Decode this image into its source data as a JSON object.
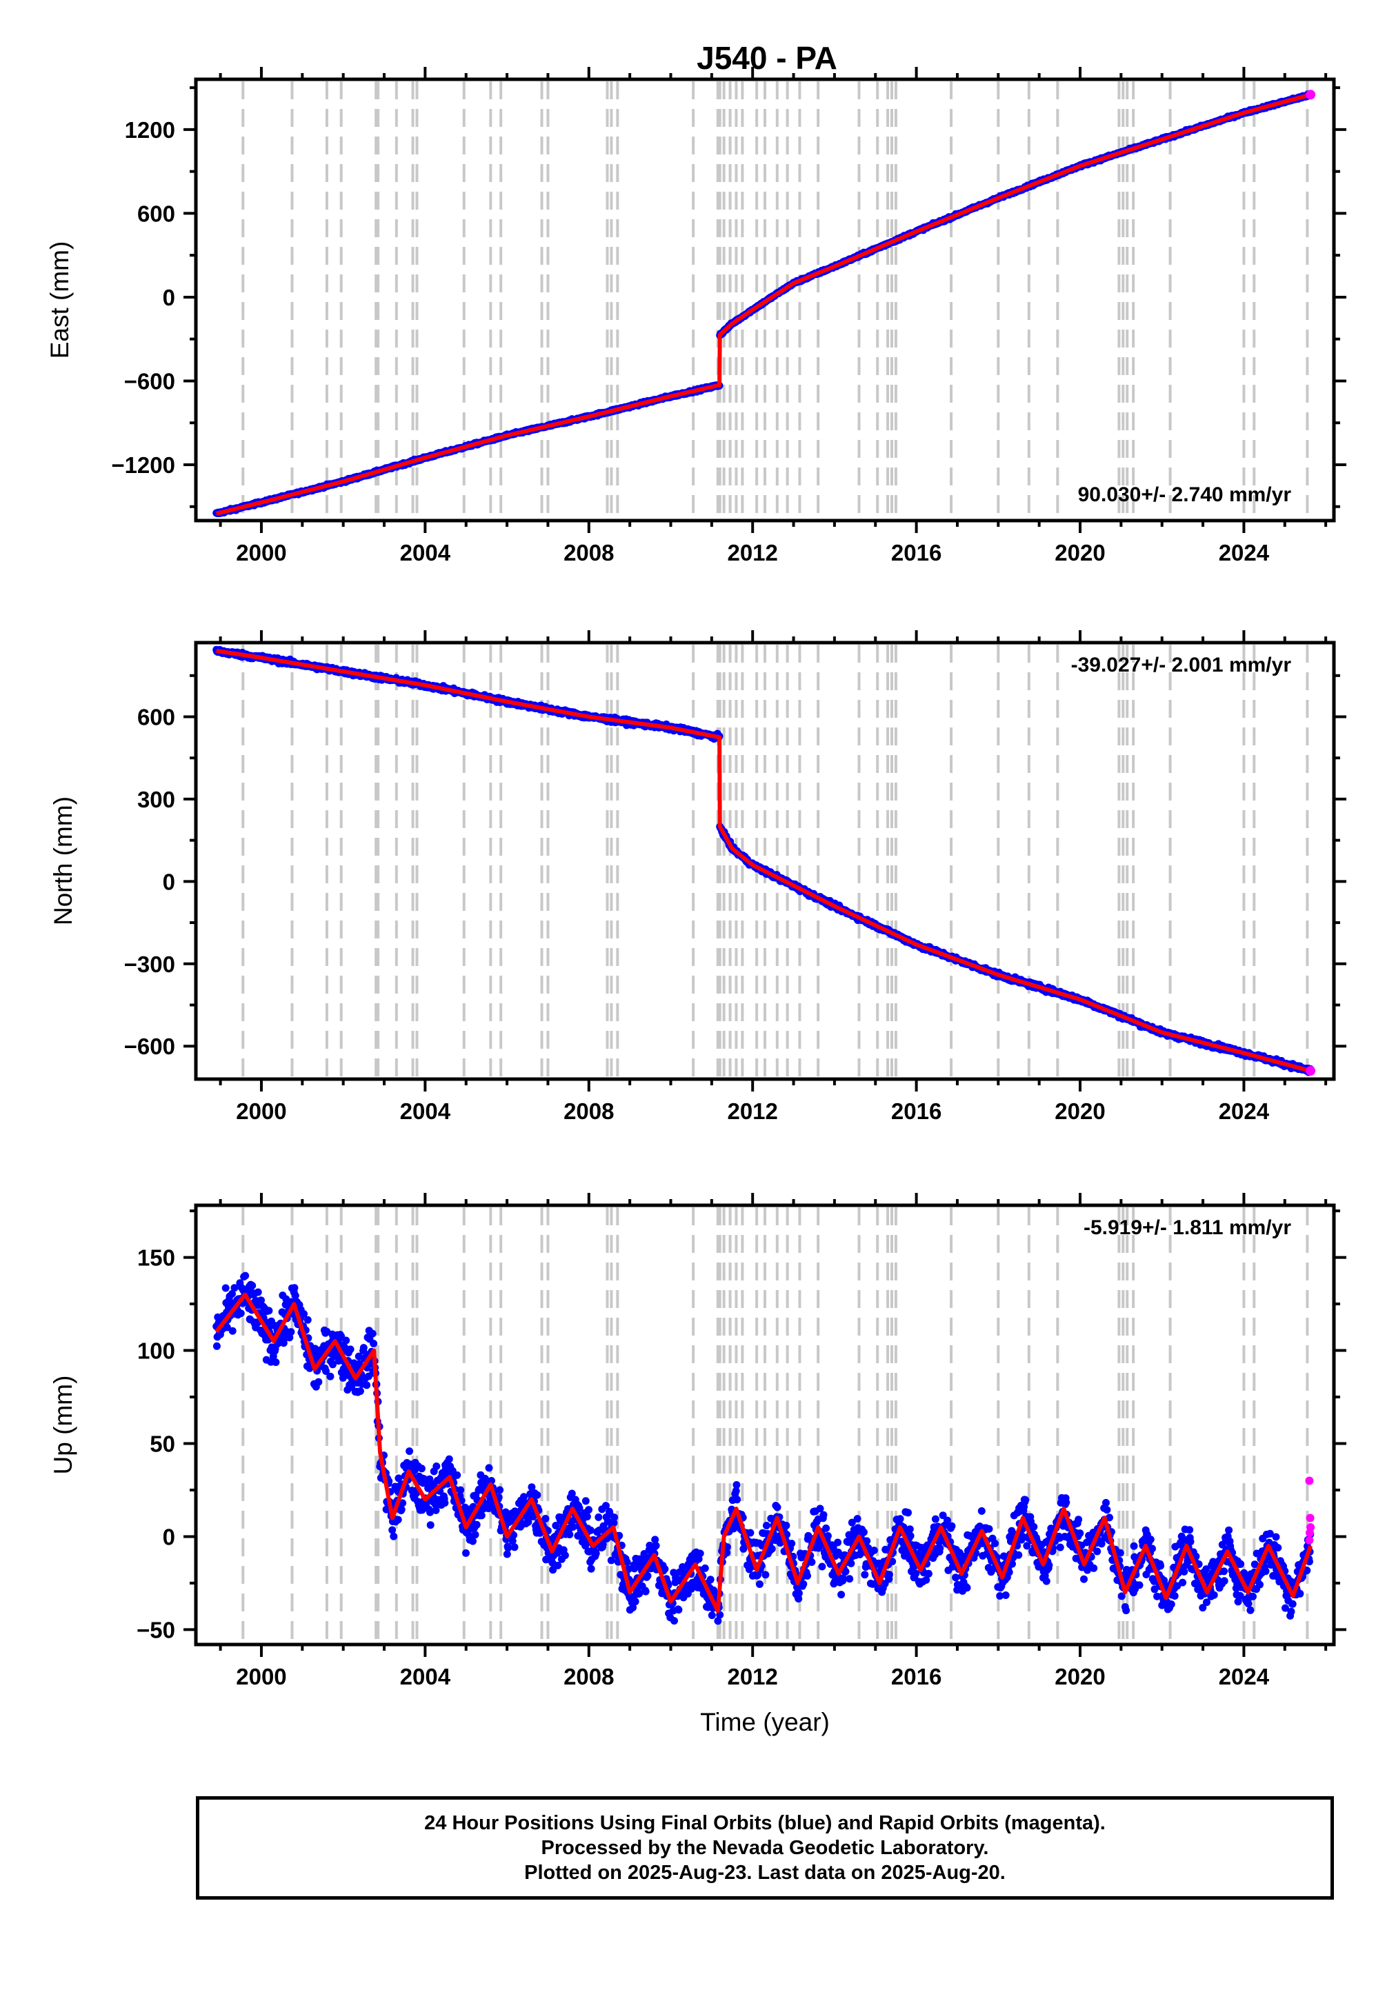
{
  "title": "J540 - PA",
  "footer": {
    "line1": "24 Hour Positions Using Final Orbits (blue) and Rapid Orbits (magenta).",
    "line2": "Processed by the Nevada Geodetic Laboratory.",
    "line3": "Plotted on 2025-Aug-23. Last data on 2025-Aug-20."
  },
  "colors": {
    "final_orbits": "#0000ff",
    "rapid_orbits": "#ff00ff",
    "model": "#ff0000",
    "step_lines": "#c8c8c8",
    "frame": "#000000"
  },
  "step_line_years": [
    1999.55,
    2000.75,
    2001.6,
    2001.95,
    2002.8,
    2002.85,
    2003.3,
    2003.7,
    2003.8,
    2004.95,
    2005.6,
    2005.85,
    2006.85,
    2007.0,
    2008.45,
    2008.55,
    2008.7,
    2010.55,
    2011.15,
    2011.2,
    2011.3,
    2011.45,
    2011.6,
    2011.75,
    2012.1,
    2012.3,
    2012.6,
    2012.85,
    2013.15,
    2013.6,
    2014.6,
    2015.05,
    2015.3,
    2015.4,
    2015.5,
    2016.85,
    2018.0,
    2018.75,
    2019.45,
    2020.95,
    2021.05,
    2021.15,
    2021.3,
    2022.2,
    2024.0,
    2024.25,
    2025.55
  ],
  "chart_data": [
    {
      "type": "scatter",
      "component": "east",
      "ylabel": "East (mm)",
      "xlim": [
        1998.4,
        2026.2
      ],
      "ylim": [
        -1600,
        1560
      ],
      "yticks": [
        -1200,
        -600,
        0,
        600,
        1200
      ],
      "xticks": [
        2000,
        2004,
        2008,
        2012,
        2016,
        2020,
        2024
      ],
      "rate_label": "90.030+/- 2.740 mm/yr",
      "rate_position": "bottom-right",
      "grid": false,
      "series": [
        {
          "values_by_year": [
            [
              1998.9,
              -1550
            ],
            [
              2000,
              -1470
            ],
            [
              2002,
              -1320
            ],
            [
              2004,
              -1150
            ],
            [
              2006,
              -990
            ],
            [
              2008,
              -855
            ],
            [
              2010,
              -710
            ],
            [
              2011.19,
              -630
            ],
            [
              2011.2,
              -270
            ],
            [
              2011.5,
              -190
            ],
            [
              2012.0,
              -90
            ],
            [
              2013.0,
              100
            ],
            [
              2014,
              220
            ],
            [
              2016,
              470
            ],
            [
              2018,
              710
            ],
            [
              2020,
              940
            ],
            [
              2022,
              1130
            ],
            [
              2024,
              1320
            ],
            [
              2025.63,
              1450
            ]
          ]
        }
      ]
    },
    {
      "type": "scatter",
      "component": "north",
      "ylabel": "North (mm)",
      "xlim": [
        1998.4,
        2026.2
      ],
      "ylim": [
        -720,
        870
      ],
      "yticks": [
        -600,
        -300,
        0,
        300,
        600
      ],
      "xticks": [
        2000,
        2004,
        2008,
        2012,
        2016,
        2020,
        2024
      ],
      "rate_label": "-39.027+/- 2.001 mm/yr",
      "rate_position": "top-right",
      "grid": false,
      "series": [
        {
          "values_by_year": [
            [
              1998.9,
              840
            ],
            [
              2000,
              815
            ],
            [
              2002,
              765
            ],
            [
              2004,
              715
            ],
            [
              2006,
              655
            ],
            [
              2008,
              600
            ],
            [
              2010,
              560
            ],
            [
              2011.19,
              525
            ],
            [
              2011.2,
              200
            ],
            [
              2011.5,
              120
            ],
            [
              2012,
              60
            ],
            [
              2013,
              -15
            ],
            [
              2014,
              -90
            ],
            [
              2016,
              -230
            ],
            [
              2018,
              -340
            ],
            [
              2020,
              -430
            ],
            [
              2022,
              -550
            ],
            [
              2024,
              -625
            ],
            [
              2025.63,
              -690
            ]
          ]
        }
      ]
    },
    {
      "type": "scatter",
      "component": "up",
      "ylabel": "Up (mm)",
      "xlabel": "Time (year)",
      "xlim": [
        1998.4,
        2026.2
      ],
      "ylim": [
        -58,
        178
      ],
      "yticks": [
        -50,
        0,
        50,
        100,
        150
      ],
      "xticks": [
        2000,
        2004,
        2008,
        2012,
        2016,
        2020,
        2024
      ],
      "rate_label": "-5.919+/- 1.811 mm/yr",
      "rate_position": "top-right",
      "grid": false,
      "series": [
        {
          "values_by_year": [
            [
              1998.9,
              110
            ],
            [
              1999.6,
              130
            ],
            [
              2000.3,
              105
            ],
            [
              2000.8,
              125
            ],
            [
              2001.3,
              90
            ],
            [
              2001.8,
              105
            ],
            [
              2002.3,
              85
            ],
            [
              2002.75,
              100
            ],
            [
              2002.9,
              45
            ],
            [
              2003.2,
              10
            ],
            [
              2003.6,
              35
            ],
            [
              2004,
              20
            ],
            [
              2004.6,
              32
            ],
            [
              2005,
              5
            ],
            [
              2005.6,
              28
            ],
            [
              2006,
              0
            ],
            [
              2006.6,
              20
            ],
            [
              2007.1,
              -8
            ],
            [
              2007.6,
              15
            ],
            [
              2008.1,
              -5
            ],
            [
              2008.6,
              5
            ],
            [
              2009,
              -30
            ],
            [
              2009.6,
              -10
            ],
            [
              2010,
              -35
            ],
            [
              2010.6,
              -15
            ],
            [
              2011.15,
              -40
            ],
            [
              2011.3,
              0
            ],
            [
              2011.6,
              15
            ],
            [
              2012.1,
              -18
            ],
            [
              2012.6,
              10
            ],
            [
              2013.1,
              -25
            ],
            [
              2013.6,
              5
            ],
            [
              2014.1,
              -20
            ],
            [
              2014.6,
              0
            ],
            [
              2015.1,
              -25
            ],
            [
              2015.6,
              5
            ],
            [
              2016.1,
              -18
            ],
            [
              2016.6,
              5
            ],
            [
              2017.1,
              -20
            ],
            [
              2017.6,
              3
            ],
            [
              2018.1,
              -22
            ],
            [
              2018.6,
              10
            ],
            [
              2019.1,
              -15
            ],
            [
              2019.6,
              15
            ],
            [
              2020.1,
              -15
            ],
            [
              2020.6,
              10
            ],
            [
              2021.1,
              -30
            ],
            [
              2021.6,
              -5
            ],
            [
              2022.1,
              -33
            ],
            [
              2022.6,
              -5
            ],
            [
              2023.1,
              -30
            ],
            [
              2023.6,
              -8
            ],
            [
              2024.1,
              -30
            ],
            [
              2024.6,
              -5
            ],
            [
              2025.2,
              -32
            ],
            [
              2025.63,
              -5
            ]
          ]
        }
      ],
      "rapid_points": [
        [
          2025.6,
          30
        ],
        [
          2025.62,
          10
        ],
        [
          2025.63,
          5
        ],
        [
          2025.61,
          2
        ],
        [
          2025.6,
          -2
        ]
      ]
    }
  ]
}
